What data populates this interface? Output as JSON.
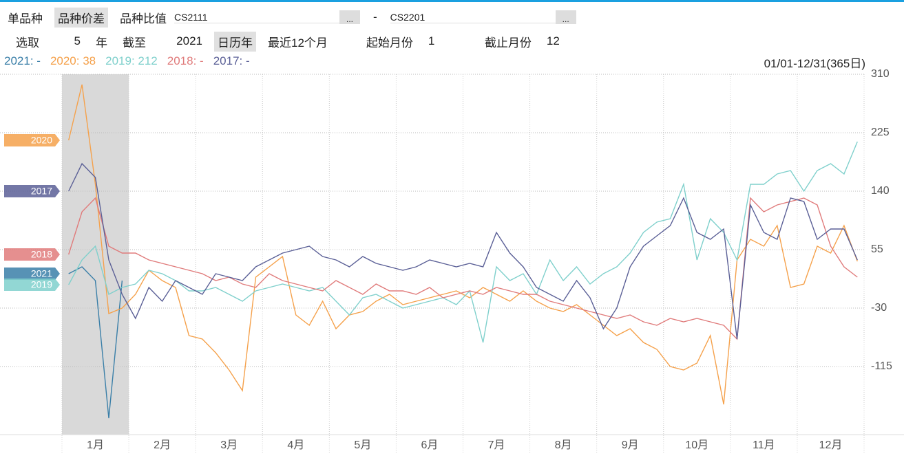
{
  "toolbar": {
    "tabs": [
      "单品种",
      "品种价差",
      "品种比值"
    ],
    "selected_tab": 1,
    "contract1": "CS2111",
    "browse": "...",
    "dash": "-",
    "contract2": "CS2201",
    "pick_label": "选取",
    "pick_years": "5",
    "year_unit": "年",
    "until_label": "截至",
    "until_year": "2021",
    "modes": [
      "日历年",
      "最近12个月"
    ],
    "selected_mode": 0,
    "start_month_label": "起始月份",
    "start_month": "1",
    "end_month_label": "截止月份",
    "end_month": "12"
  },
  "chart_data": {
    "type": "line",
    "range_label": "01/01-12/31(365日)",
    "categories": [
      null,
      null,
      "1月",
      null,
      null,
      null,
      null,
      "2月",
      null,
      null,
      null,
      null,
      "3月",
      null,
      null,
      null,
      null,
      "4月",
      null,
      null,
      null,
      null,
      "5月",
      null,
      null,
      null,
      null,
      "6月",
      null,
      null,
      null,
      null,
      "7月",
      null,
      null,
      null,
      null,
      "8月",
      null,
      null,
      null,
      null,
      "9月",
      null,
      null,
      null,
      null,
      "10月",
      null,
      null,
      null,
      null,
      "11月",
      null,
      null,
      null,
      null,
      "12月",
      null,
      null
    ],
    "ylim": [
      -214,
      310
    ],
    "yticks": [
      310,
      225,
      140,
      55,
      -30,
      -115
    ],
    "grid": true,
    "series": [
      {
        "name": "2021",
        "legend": "2021: -",
        "color": "#3a7fa8",
        "values": [
          20,
          30,
          10,
          -190,
          10,
          null,
          null,
          null,
          null,
          null,
          null,
          null,
          null,
          null,
          null,
          null,
          null,
          null,
          null,
          null,
          null,
          null,
          null,
          null,
          null,
          null,
          null,
          null,
          null,
          null,
          null,
          null,
          null,
          null,
          null,
          null,
          null,
          null,
          null,
          null,
          null,
          null,
          null,
          null,
          null,
          null,
          null,
          null,
          null,
          null,
          null,
          null,
          null,
          null,
          null,
          null,
          null,
          null,
          null,
          null
        ]
      },
      {
        "name": "2020",
        "legend": "2020: 38",
        "color": "#f5a14b",
        "values": [
          214,
          295,
          150,
          -38,
          -30,
          -10,
          25,
          10,
          0,
          -70,
          -75,
          -95,
          -120,
          -150,
          15,
          30,
          45,
          -40,
          -55,
          -20,
          -60,
          -40,
          -35,
          -20,
          -10,
          -25,
          -20,
          -15,
          -10,
          -5,
          -15,
          0,
          -10,
          -20,
          -5,
          -20,
          -30,
          -35,
          -25,
          -40,
          -55,
          -70,
          -60,
          -80,
          -90,
          -115,
          -120,
          -110,
          -70,
          -170,
          40,
          70,
          60,
          90,
          0,
          5,
          60,
          50,
          90,
          38
        ]
      },
      {
        "name": "2019",
        "legend": "2019: 212",
        "color": "#7fd0cc",
        "values": [
          4,
          40,
          60,
          -10,
          0,
          5,
          25,
          20,
          10,
          -5,
          -5,
          0,
          -10,
          -20,
          -5,
          0,
          5,
          0,
          -5,
          0,
          -20,
          -40,
          -15,
          -10,
          -20,
          -30,
          -25,
          -20,
          -15,
          -25,
          -5,
          -80,
          30,
          10,
          20,
          -10,
          40,
          10,
          30,
          5,
          20,
          30,
          50,
          80,
          95,
          100,
          150,
          40,
          100,
          80,
          40,
          150,
          150,
          165,
          170,
          140,
          170,
          180,
          165,
          212
        ]
      },
      {
        "name": "2018",
        "legend": "2018: -",
        "color": "#e07b7b",
        "values": [
          48,
          110,
          130,
          60,
          50,
          50,
          40,
          35,
          30,
          25,
          20,
          10,
          15,
          5,
          0,
          20,
          10,
          5,
          0,
          -5,
          10,
          0,
          -10,
          5,
          -5,
          -5,
          -10,
          0,
          -15,
          -10,
          -5,
          -10,
          0,
          -5,
          -10,
          -10,
          -20,
          -25,
          -30,
          -35,
          -40,
          -45,
          -40,
          -50,
          -55,
          -45,
          -50,
          -45,
          -50,
          -55,
          -75,
          130,
          110,
          120,
          125,
          130,
          120,
          60,
          30,
          15
        ]
      },
      {
        "name": "2017",
        "legend": "2017: -",
        "color": "#5a5f96",
        "values": [
          140,
          180,
          160,
          40,
          -10,
          -45,
          0,
          -20,
          10,
          0,
          -10,
          20,
          15,
          10,
          30,
          40,
          50,
          55,
          60,
          45,
          40,
          30,
          45,
          35,
          30,
          25,
          30,
          40,
          35,
          30,
          35,
          30,
          80,
          50,
          30,
          0,
          -10,
          -20,
          10,
          -15,
          -60,
          -30,
          30,
          60,
          75,
          90,
          130,
          80,
          70,
          85,
          -75,
          120,
          80,
          70,
          130,
          125,
          70,
          85,
          85,
          40
        ]
      }
    ]
  }
}
